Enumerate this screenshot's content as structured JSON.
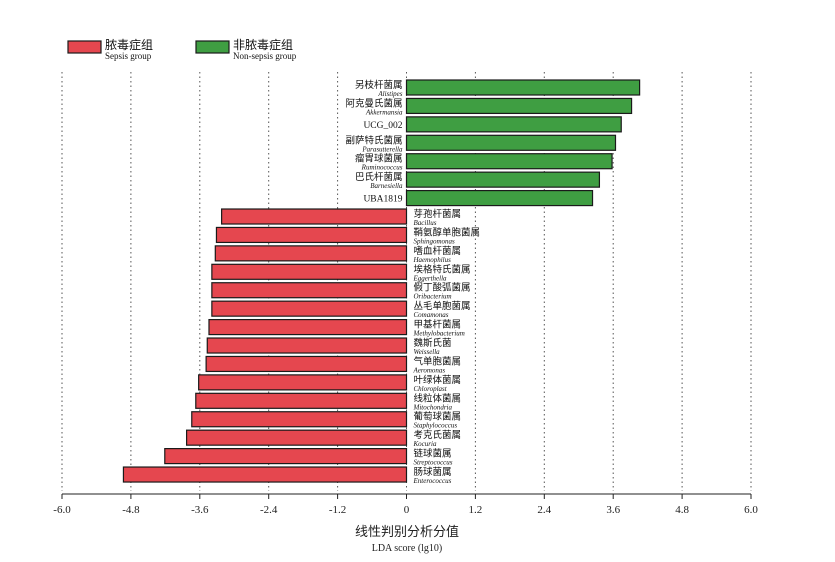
{
  "chart_data": {
    "type": "bar",
    "orientation": "horizontal",
    "title": "",
    "xlabel_cn": "线性判别分析分值",
    "xlabel_en": "LDA score (lg10)",
    "xlim": [
      -6.0,
      6.0
    ],
    "ticks": [
      "-6.0",
      "-4.8",
      "-3.6",
      "-2.4",
      "-1.2",
      "0",
      "1.2",
      "2.4",
      "3.6",
      "4.8",
      "6.0"
    ],
    "tick_values": [
      -6.0,
      -4.8,
      -3.6,
      -2.4,
      -1.2,
      0,
      1.2,
      2.4,
      3.6,
      4.8,
      6.0
    ],
    "grid": "vertical-dotted",
    "legend_position": "top-left",
    "colors": {
      "sepsis": "#e5474f",
      "non_sepsis": "#3f9e42",
      "edge": "#1a1a1a"
    },
    "legend": [
      {
        "cn": "脓毒症组",
        "en": "Sepsis group",
        "color": "#e5474f"
      },
      {
        "cn": "非脓毒症组",
        "en": "Non-sepsis group",
        "color": "#3f9e42"
      }
    ],
    "series": [
      {
        "name": "非脓毒症组",
        "values": [
          {
            "cn": "另枝杆菌属",
            "en": "Alistipes",
            "value": 4.06
          },
          {
            "cn": "阿克曼氏菌属",
            "en": "Akkermansia",
            "value": 3.92
          },
          {
            "cn": "UCG_002",
            "en": "",
            "value": 3.74
          },
          {
            "cn": "副萨特氏菌属",
            "en": "Parasutterella",
            "value": 3.64
          },
          {
            "cn": "瘤胃球菌属",
            "en": "Ruminococcus",
            "value": 3.58
          },
          {
            "cn": "巴氏杆菌属",
            "en": "Barnesiella",
            "value": 3.36
          },
          {
            "cn": "UBA1819",
            "en": "",
            "value": 3.24
          }
        ]
      },
      {
        "name": "脓毒症组",
        "values": [
          {
            "cn": "芽孢杆菌属",
            "en": "Bacillus",
            "value": -3.22
          },
          {
            "cn": "鞘氨醇单胞菌属",
            "en": "Sphingomonas",
            "value": -3.31
          },
          {
            "cn": "嗜血杆菌属",
            "en": "Haemophilus",
            "value": -3.33
          },
          {
            "cn": "埃格特氏菌属",
            "en": "Eggerthella",
            "value": -3.39
          },
          {
            "cn": "假丁酸弧菌属",
            "en": "Oribacterium",
            "value": -3.39
          },
          {
            "cn": "丛毛单胞菌属",
            "en": "Comamonas",
            "value": -3.39
          },
          {
            "cn": "甲基杆菌属",
            "en": "Methylobacterium",
            "value": -3.44
          },
          {
            "cn": "魏斯氏菌",
            "en": "Weissella",
            "value": -3.47
          },
          {
            "cn": "气单胞菌属",
            "en": "Aeromonas",
            "value": -3.49
          },
          {
            "cn": "叶绿体菌属",
            "en": "Chloroplast",
            "value": -3.62
          },
          {
            "cn": "线粒体菌属",
            "en": "Mitochondria",
            "value": -3.67
          },
          {
            "cn": "葡萄球菌属",
            "en": "Staphylococcus",
            "value": -3.74
          },
          {
            "cn": "考克氏菌属",
            "en": "Kocuria",
            "value": -3.83
          },
          {
            "cn": "链球菌属",
            "en": "Streptococcus",
            "value": -4.21
          },
          {
            "cn": "肠球菌属",
            "en": "Enterococcus",
            "value": -4.93
          }
        ]
      }
    ]
  }
}
